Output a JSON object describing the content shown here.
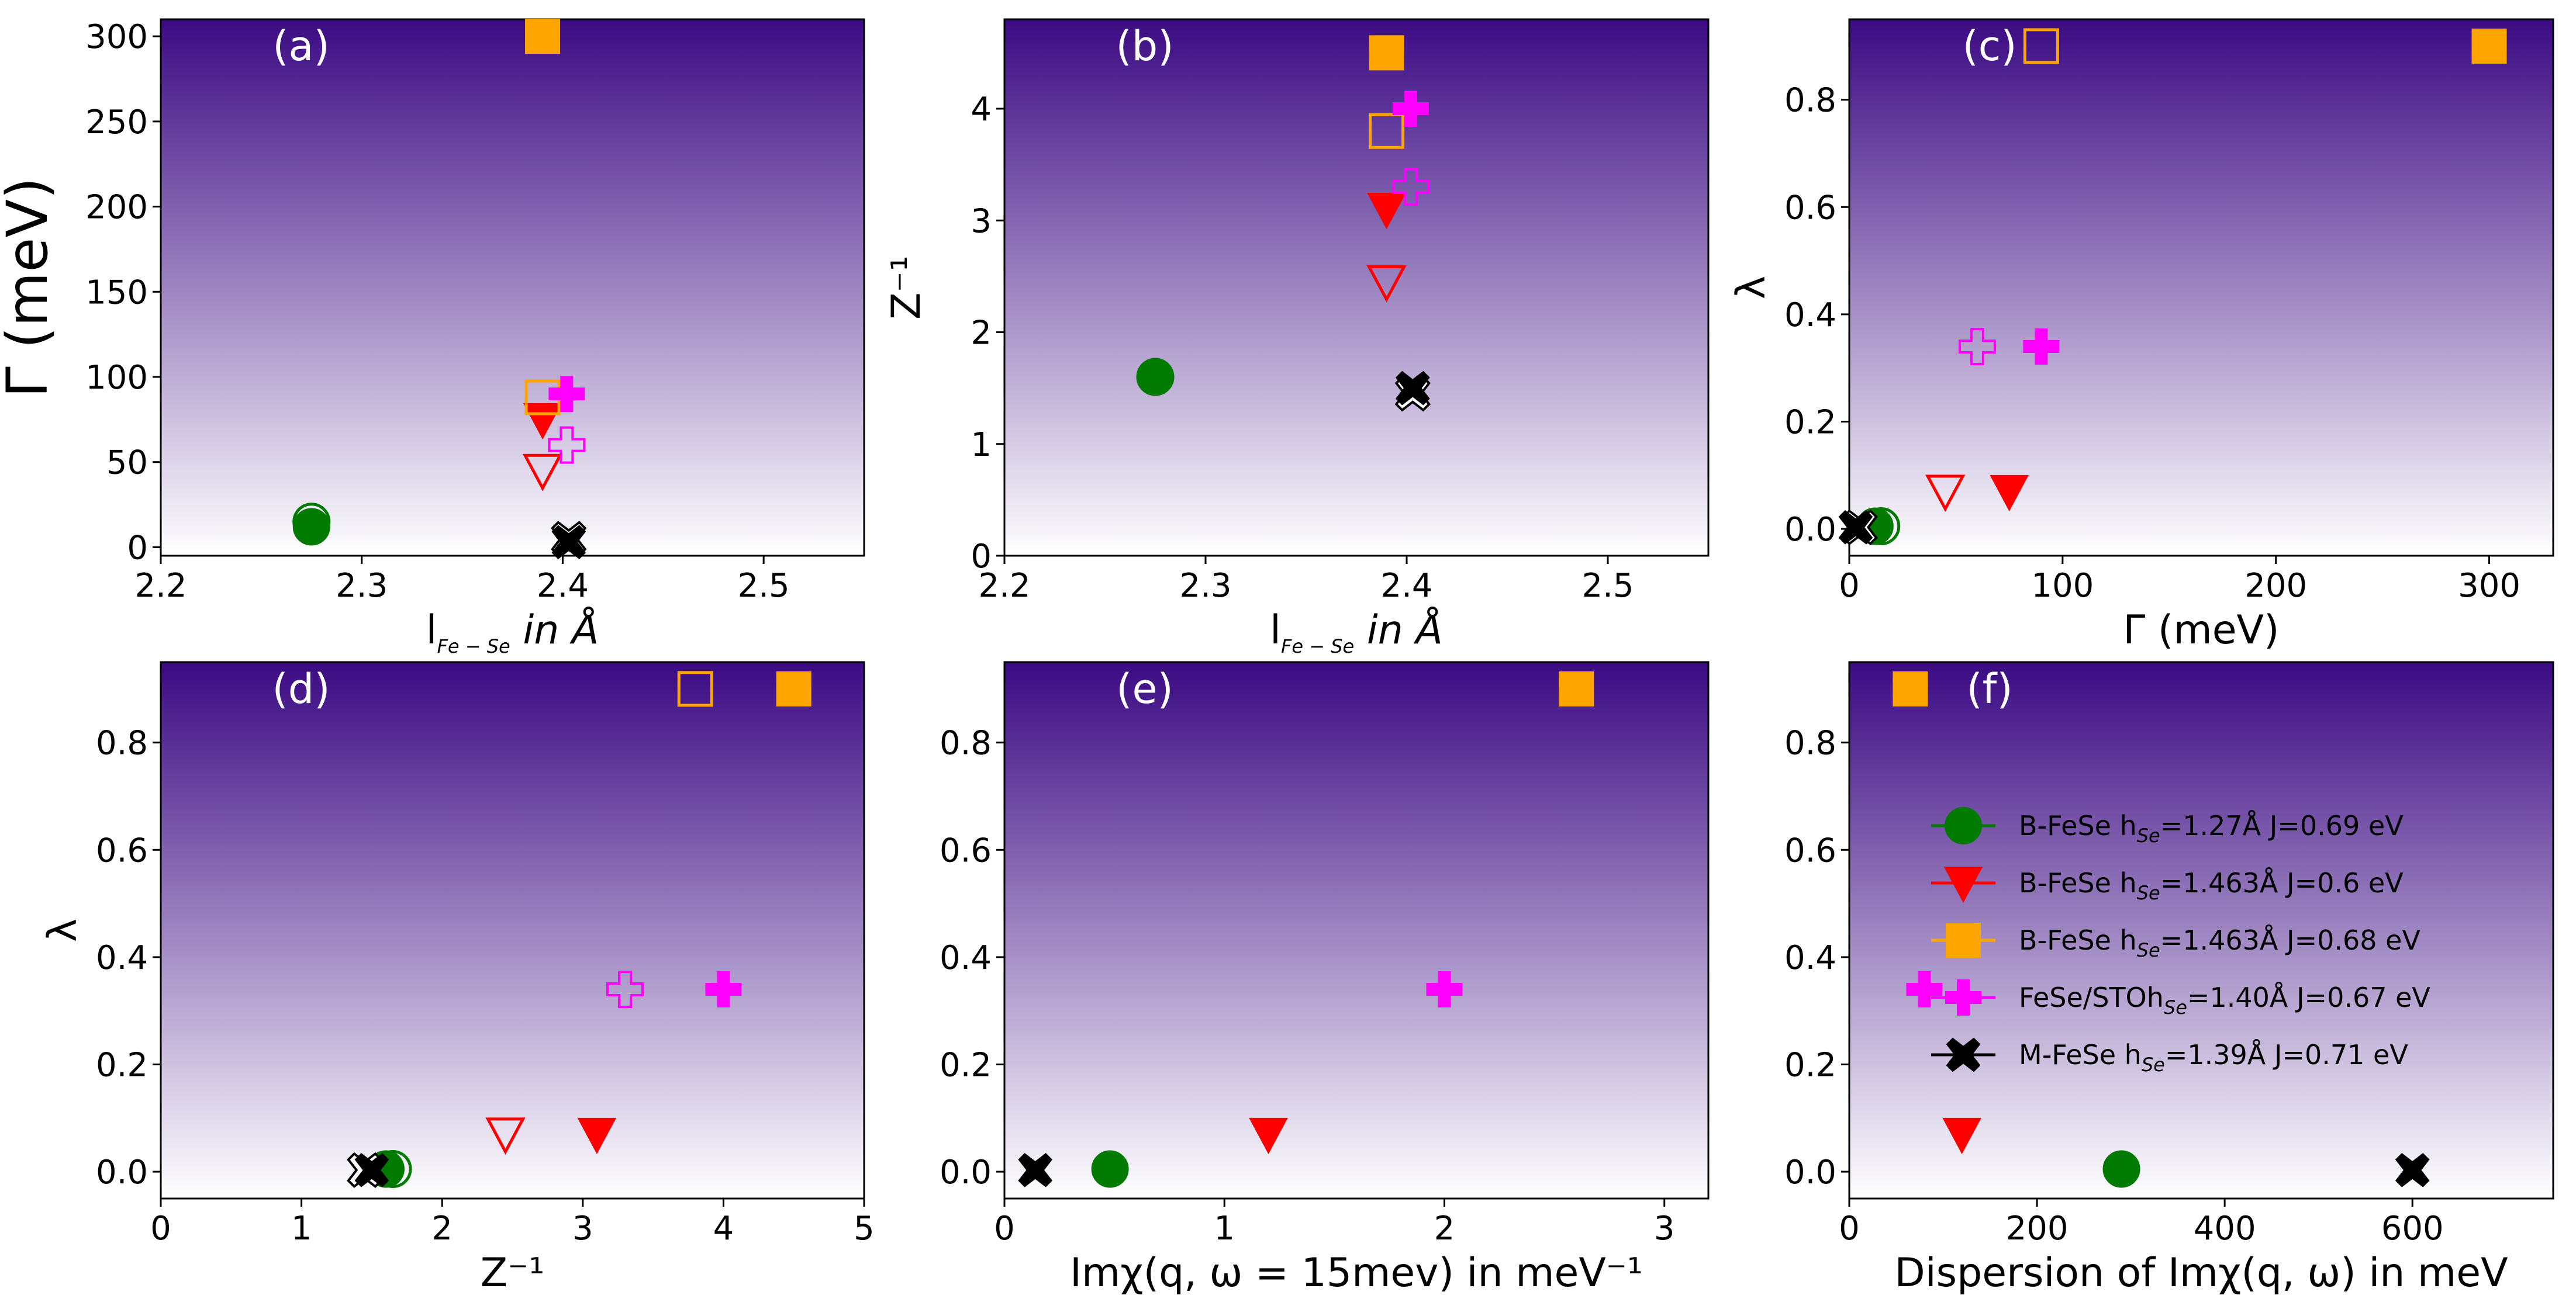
{
  "figure": {
    "colors": {
      "bg_top": "#3b0a83",
      "bg_bottom": "#ffffff"
    },
    "series": [
      {
        "key": "g",
        "name": "B-FeSe",
        "legend_prefix": "B-FeSe h",
        "legend_sub": "Se",
        "legend_suffix": "=1.27Å J=0.69 eV",
        "marker": "circle",
        "color": "#007a00"
      },
      {
        "key": "r",
        "name": "B-FeSe",
        "legend_prefix": "B-FeSe h",
        "legend_sub": "Se",
        "legend_suffix": "=1.463Å J=0.6 eV",
        "marker": "triangle-down",
        "color": "#ff0000"
      },
      {
        "key": "o",
        "name": "B-FeSe",
        "legend_prefix": "B-FeSe h",
        "legend_sub": "Se",
        "legend_suffix": "=1.463Å J=0.68 eV",
        "marker": "square",
        "color": "#ffa500"
      },
      {
        "key": "m",
        "name": "FeSe/STO",
        "legend_prefix": "FeSe/STOh",
        "legend_sub": "Se",
        "legend_suffix": "=1.40Å J=0.67 eV",
        "marker": "plus",
        "color": "#ff00ff"
      },
      {
        "key": "k",
        "name": "M-FeSe",
        "legend_prefix": "M-FeSe h",
        "legend_sub": "Se",
        "legend_suffix": "=1.39Å J=0.71 eV",
        "marker": "x",
        "color": "#000000"
      }
    ]
  },
  "chart_data": [
    {
      "panel": "(a)",
      "type": "scatter",
      "xlabel": "l",
      "xlabel_sub": "Fe − Se",
      "xlabel_rest": " in Å",
      "ylabel": "Γ (meV)",
      "xlim": [
        2.2,
        2.55
      ],
      "ylim": [
        -5,
        310
      ],
      "xticks": [
        2.2,
        2.3,
        2.4,
        2.5
      ],
      "xtick_labels": [
        "2.2",
        "2.3",
        "2.4",
        "2.5"
      ],
      "yticks": [
        0,
        50,
        100,
        150,
        200,
        250,
        300
      ],
      "ytick_labels": [
        "0",
        "50",
        "100",
        "150",
        "200",
        "250",
        "300"
      ],
      "points": [
        {
          "s": "g",
          "x": 2.275,
          "y": 15,
          "filled": false
        },
        {
          "s": "g",
          "x": 2.275,
          "y": 12,
          "filled": true
        },
        {
          "s": "r",
          "x": 2.39,
          "y": 45,
          "filled": false
        },
        {
          "s": "r",
          "x": 2.39,
          "y": 75,
          "filled": true
        },
        {
          "s": "o",
          "x": 2.39,
          "y": 88,
          "filled": false
        },
        {
          "s": "o",
          "x": 2.39,
          "y": 300,
          "filled": true
        },
        {
          "s": "m",
          "x": 2.402,
          "y": 60,
          "filled": false
        },
        {
          "s": "m",
          "x": 2.402,
          "y": 90,
          "filled": true
        },
        {
          "s": "k",
          "x": 2.403,
          "y": 5,
          "filled": false
        },
        {
          "s": "k",
          "x": 2.403,
          "y": 3,
          "filled": true
        }
      ]
    },
    {
      "panel": "(b)",
      "type": "scatter",
      "xlabel": "l",
      "xlabel_sub": "Fe − Se",
      "xlabel_rest": " in Å",
      "ylabel": "Z⁻¹",
      "xlim": [
        2.2,
        2.55
      ],
      "ylim": [
        0,
        4.8
      ],
      "xticks": [
        2.2,
        2.3,
        2.4,
        2.5
      ],
      "xtick_labels": [
        "2.2",
        "2.3",
        "2.4",
        "2.5"
      ],
      "yticks": [
        0,
        1,
        2,
        3,
        4
      ],
      "ytick_labels": [
        "0",
        "1",
        "2",
        "3",
        "4"
      ],
      "points": [
        {
          "s": "g",
          "x": 2.275,
          "y": 1.6,
          "filled": false
        },
        {
          "s": "g",
          "x": 2.275,
          "y": 1.6,
          "filled": true
        },
        {
          "s": "r",
          "x": 2.39,
          "y": 2.45,
          "filled": false
        },
        {
          "s": "r",
          "x": 2.39,
          "y": 3.1,
          "filled": true
        },
        {
          "s": "o",
          "x": 2.39,
          "y": 3.8,
          "filled": false
        },
        {
          "s": "o",
          "x": 2.39,
          "y": 4.5,
          "filled": true
        },
        {
          "s": "m",
          "x": 2.402,
          "y": 3.3,
          "filled": false
        },
        {
          "s": "m",
          "x": 2.402,
          "y": 4.0,
          "filled": true
        },
        {
          "s": "k",
          "x": 2.403,
          "y": 1.45,
          "filled": false
        },
        {
          "s": "k",
          "x": 2.403,
          "y": 1.5,
          "filled": true
        }
      ]
    },
    {
      "panel": "(c)",
      "type": "scatter",
      "xlabel": "Γ (meV)",
      "ylabel": "λ",
      "xlim": [
        0,
        330
      ],
      "ylim": [
        -0.05,
        0.95
      ],
      "xticks": [
        0,
        100,
        200,
        300
      ],
      "xtick_labels": [
        "0",
        "100",
        "200",
        "300"
      ],
      "yticks": [
        0.0,
        0.2,
        0.4,
        0.6,
        0.8
      ],
      "ytick_labels": [
        "0.0",
        "0.2",
        "0.4",
        "0.6",
        "0.8"
      ],
      "points": [
        {
          "s": "g",
          "x": 15,
          "y": 0.005,
          "filled": false
        },
        {
          "s": "g",
          "x": 12,
          "y": 0.005,
          "filled": true
        },
        {
          "s": "r",
          "x": 45,
          "y": 0.07,
          "filled": false
        },
        {
          "s": "r",
          "x": 75,
          "y": 0.07,
          "filled": true
        },
        {
          "s": "o",
          "x": 90,
          "y": 0.9,
          "filled": false
        },
        {
          "s": "o",
          "x": 300,
          "y": 0.9,
          "filled": true
        },
        {
          "s": "m",
          "x": 60,
          "y": 0.34,
          "filled": false
        },
        {
          "s": "m",
          "x": 90,
          "y": 0.34,
          "filled": true
        },
        {
          "s": "k",
          "x": 5,
          "y": 0.003,
          "filled": false
        },
        {
          "s": "k",
          "x": 3,
          "y": 0.003,
          "filled": true
        }
      ]
    },
    {
      "panel": "(d)",
      "type": "scatter",
      "xlabel": "Z⁻¹",
      "ylabel": "λ",
      "xlim": [
        0,
        5
      ],
      "ylim": [
        -0.05,
        0.95
      ],
      "xticks": [
        0,
        1,
        2,
        3,
        4,
        5
      ],
      "xtick_labels": [
        "0",
        "1",
        "2",
        "3",
        "4",
        "5"
      ],
      "yticks": [
        0.0,
        0.2,
        0.4,
        0.6,
        0.8
      ],
      "ytick_labels": [
        "0.0",
        "0.2",
        "0.4",
        "0.6",
        "0.8"
      ],
      "points": [
        {
          "s": "g",
          "x": 1.65,
          "y": 0.005,
          "filled": false
        },
        {
          "s": "g",
          "x": 1.6,
          "y": 0.005,
          "filled": true
        },
        {
          "s": "r",
          "x": 2.45,
          "y": 0.07,
          "filled": false
        },
        {
          "s": "r",
          "x": 3.1,
          "y": 0.07,
          "filled": true
        },
        {
          "s": "o",
          "x": 3.8,
          "y": 0.9,
          "filled": false
        },
        {
          "s": "o",
          "x": 4.5,
          "y": 0.9,
          "filled": true
        },
        {
          "s": "m",
          "x": 3.3,
          "y": 0.34,
          "filled": false
        },
        {
          "s": "m",
          "x": 4.0,
          "y": 0.34,
          "filled": true
        },
        {
          "s": "k",
          "x": 1.45,
          "y": 0.003,
          "filled": false
        },
        {
          "s": "k",
          "x": 1.5,
          "y": 0.003,
          "filled": true
        }
      ]
    },
    {
      "panel": "(e)",
      "type": "scatter",
      "xlabel": "Imχ(q, ω = 15mev) in meV⁻¹",
      "ylabel": "",
      "xlim": [
        0,
        3.2
      ],
      "ylim": [
        -0.05,
        0.95
      ],
      "xticks": [
        0,
        1,
        2,
        3
      ],
      "xtick_labels": [
        "0",
        "1",
        "2",
        "3"
      ],
      "yticks": [
        0.0,
        0.2,
        0.4,
        0.6,
        0.8
      ],
      "ytick_labels": [
        "0.0",
        "0.2",
        "0.4",
        "0.6",
        "0.8"
      ],
      "points": [
        {
          "s": "g",
          "x": 0.48,
          "y": 0.005,
          "filled": true
        },
        {
          "s": "r",
          "x": 1.2,
          "y": 0.07,
          "filled": true
        },
        {
          "s": "o",
          "x": 2.6,
          "y": 0.9,
          "filled": true
        },
        {
          "s": "m",
          "x": 2.0,
          "y": 0.34,
          "filled": true
        },
        {
          "s": "k",
          "x": 0.14,
          "y": 0.003,
          "filled": true
        }
      ]
    },
    {
      "panel": "(f)",
      "type": "scatter",
      "xlabel": "Dispersion of Imχ(q, ω) in meV",
      "ylabel": "",
      "xlim": [
        0,
        750
      ],
      "ylim": [
        -0.05,
        0.95
      ],
      "xticks": [
        0,
        200,
        400,
        600
      ],
      "xtick_labels": [
        "0",
        "200",
        "400",
        "600"
      ],
      "yticks": [
        0.0,
        0.2,
        0.4,
        0.6,
        0.8
      ],
      "ytick_labels": [
        "0.0",
        "0.2",
        "0.4",
        "0.6",
        "0.8"
      ],
      "legend": "center-right",
      "points": [
        {
          "s": "g",
          "x": 290,
          "y": 0.005,
          "filled": true
        },
        {
          "s": "r",
          "x": 120,
          "y": 0.07,
          "filled": true
        },
        {
          "s": "o",
          "x": 65,
          "y": 0.9,
          "filled": true
        },
        {
          "s": "m",
          "x": 80,
          "y": 0.34,
          "filled": true
        },
        {
          "s": "k",
          "x": 600,
          "y": 0.003,
          "filled": true
        }
      ]
    }
  ]
}
